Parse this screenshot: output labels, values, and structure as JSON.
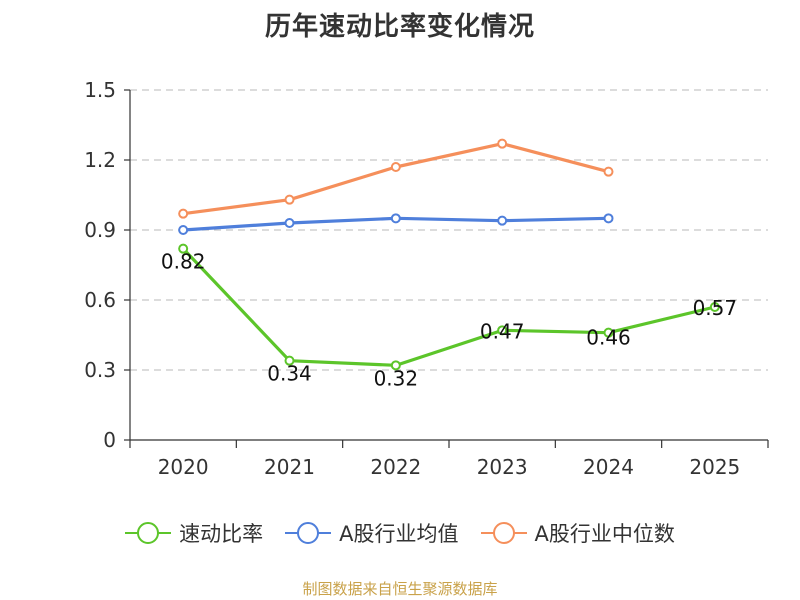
{
  "title": "历年速动比率变化情况",
  "source": "制图数据来自恒生聚源数据库",
  "colors": {
    "series1": "#5cc52a",
    "series2": "#4f7fdb",
    "series3": "#f58f5b",
    "grid": "#c8c8c8",
    "axis": "#333333"
  },
  "chart_data": {
    "type": "line",
    "categories": [
      "2020",
      "2021",
      "2022",
      "2023",
      "2024",
      "2025"
    ],
    "ylim": [
      0,
      1.5
    ],
    "yticks": [
      "0",
      "0.3",
      "0.6",
      "0.9",
      "1.2",
      "1.5"
    ],
    "ytick_values": [
      0,
      0.3,
      0.6,
      0.9,
      1.2,
      1.5
    ],
    "series": [
      {
        "name": "速动比率",
        "color": "#5cc52a",
        "values": [
          0.82,
          0.34,
          0.32,
          0.47,
          0.46,
          0.57
        ],
        "labels": [
          "0.82",
          "0.34",
          "0.32",
          "0.47",
          "0.46",
          "0.57"
        ]
      },
      {
        "name": "A股行业均值",
        "color": "#4f7fdb",
        "values": [
          0.9,
          0.93,
          0.95,
          0.94,
          0.95,
          null
        ]
      },
      {
        "name": "A股行业中位数",
        "color": "#f58f5b",
        "values": [
          0.97,
          1.03,
          1.17,
          1.27,
          1.15,
          null
        ]
      }
    ]
  }
}
